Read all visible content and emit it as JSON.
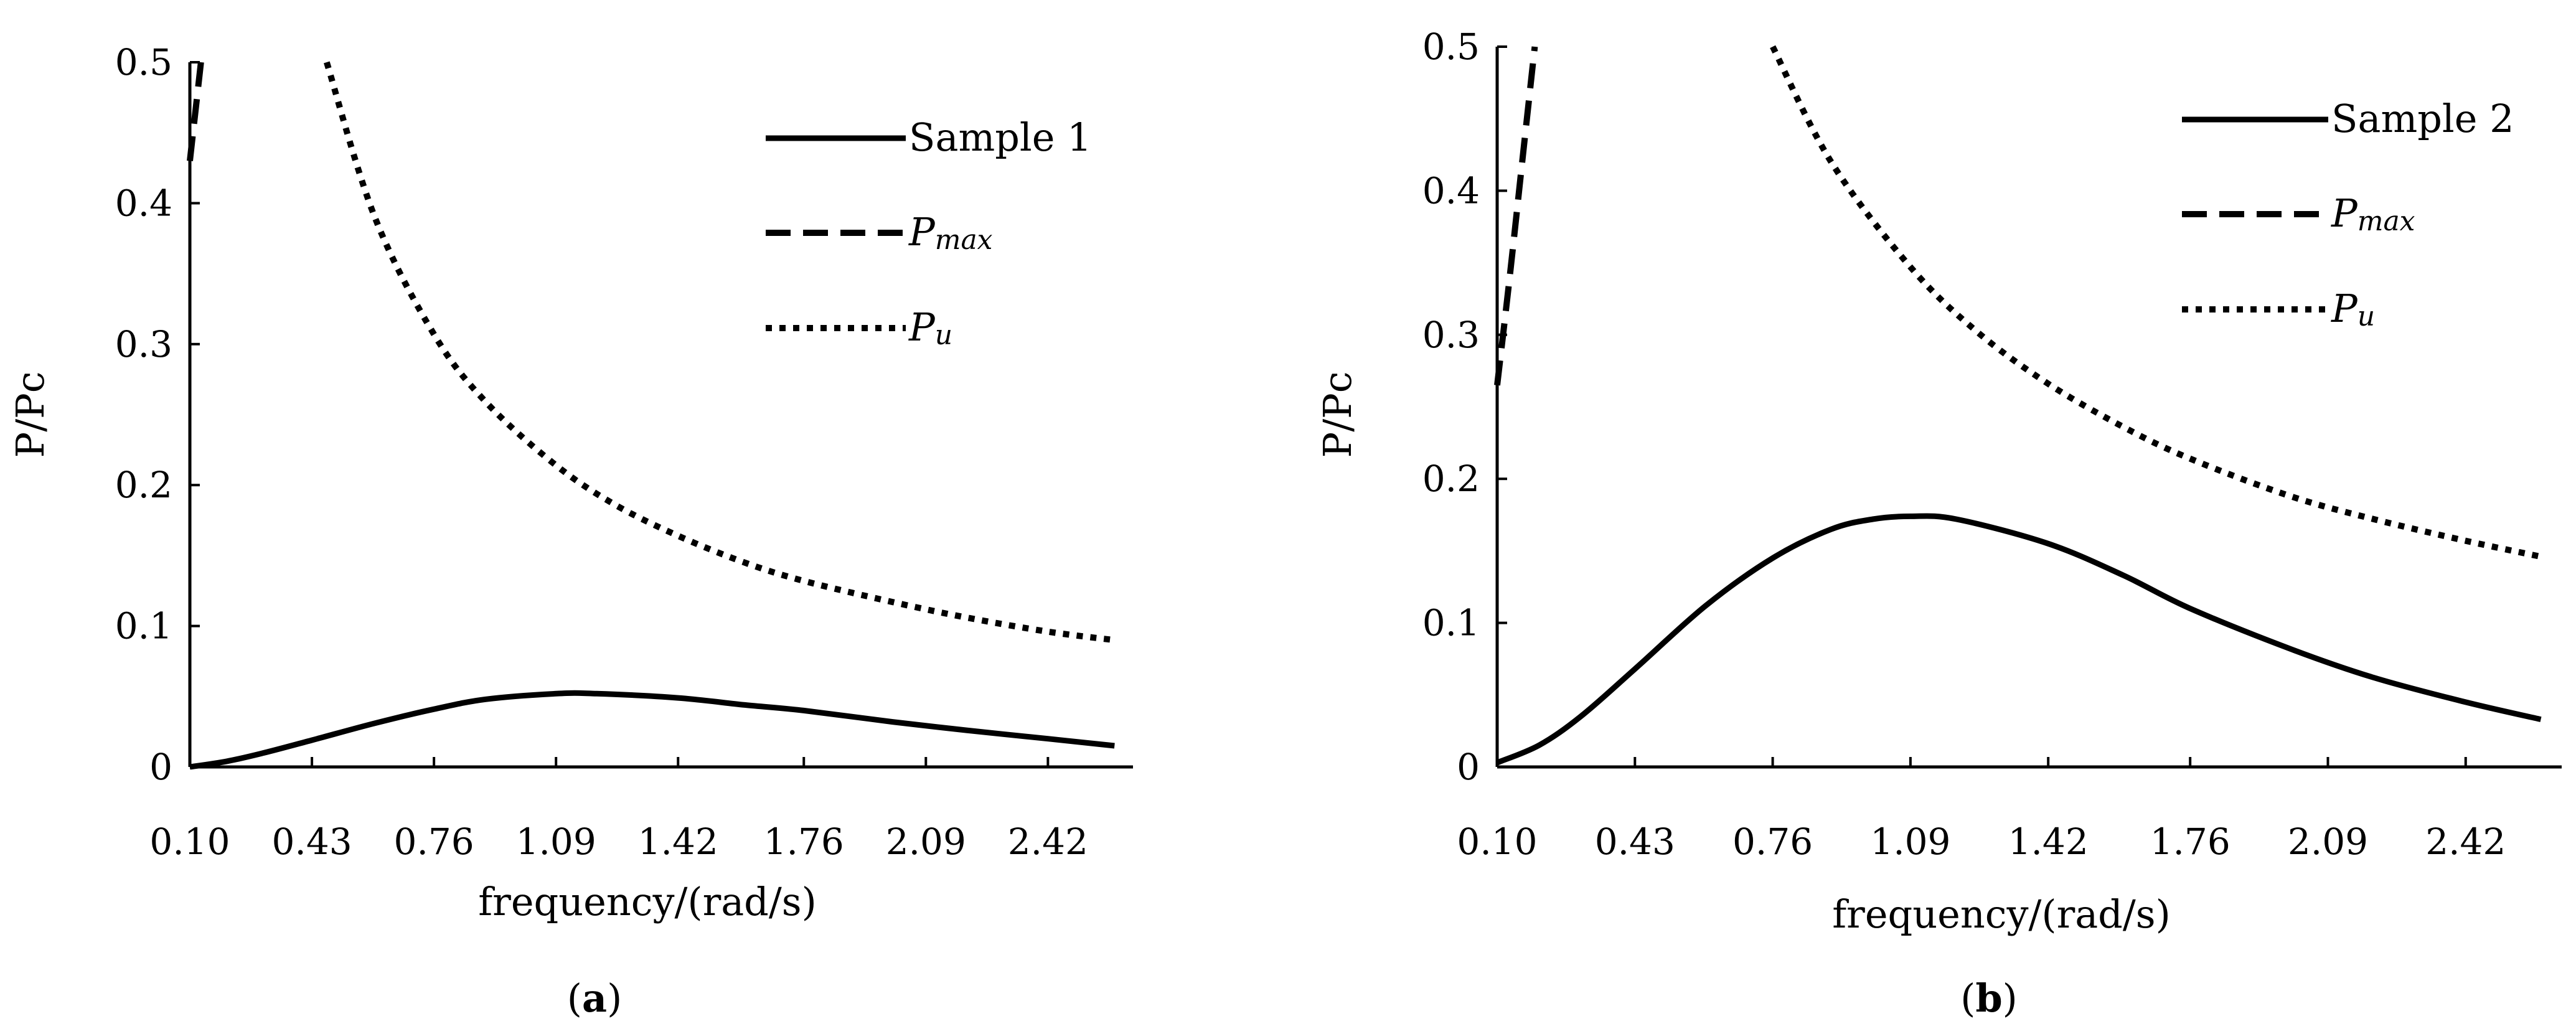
{
  "chart_data": [
    {
      "type": "line",
      "caption": {
        "open": "(",
        "letter": "a",
        "close": ")"
      },
      "xlabel": "frequency/(rad/s)",
      "ylabel": "P/Pc",
      "xlim": [
        0.1,
        2.65
      ],
      "ylim": [
        0,
        0.5
      ],
      "x_ticks": [
        "0.10",
        "0.43",
        "0.76",
        "1.09",
        "1.42",
        "1.76",
        "2.09",
        "2.42"
      ],
      "y_ticks": [
        "0",
        "0.1",
        "0.2",
        "0.3",
        "0.4",
        "0.5"
      ],
      "series": [
        {
          "name": "Sample 1",
          "style": "solid",
          "x": [
            0.1,
            0.2,
            0.3,
            0.43,
            0.6,
            0.76,
            0.9,
            1.09,
            1.2,
            1.42,
            1.6,
            1.76,
            2.0,
            2.2,
            2.42,
            2.6
          ],
          "y": [
            0.0,
            0.004,
            0.01,
            0.019,
            0.031,
            0.041,
            0.048,
            0.052,
            0.052,
            0.049,
            0.044,
            0.04,
            0.032,
            0.026,
            0.02,
            0.015
          ]
        },
        {
          "name": "P",
          "sub": "max",
          "style": "dashed",
          "x": [
            0.1,
            0.115,
            0.13
          ],
          "y": [
            0.43,
            0.465,
            0.5
          ]
        },
        {
          "name": "P",
          "sub": "u",
          "style": "dotted",
          "x": [
            0.47,
            0.6,
            0.76,
            0.9,
            1.09,
            1.25,
            1.42,
            1.6,
            1.76,
            2.0,
            2.2,
            2.42,
            2.6
          ],
          "y": [
            0.5,
            0.39,
            0.307,
            0.259,
            0.214,
            0.186,
            0.164,
            0.145,
            0.132,
            0.117,
            0.106,
            0.096,
            0.09
          ]
        }
      ]
    },
    {
      "type": "line",
      "caption": {
        "open": "(",
        "letter": "b",
        "close": ")"
      },
      "xlabel": "frequency/(rad/s)",
      "ylabel": "P/Pc",
      "xlim": [
        0.1,
        2.65
      ],
      "ylim": [
        0,
        0.5
      ],
      "x_ticks": [
        "0.10",
        "0.43",
        "0.76",
        "1.09",
        "1.42",
        "1.76",
        "2.09",
        "2.42"
      ],
      "y_ticks": [
        "0",
        "0.1",
        "0.2",
        "0.3",
        "0.4",
        "0.5"
      ],
      "series": [
        {
          "name": "Sample 2",
          "style": "solid",
          "x": [
            0.1,
            0.2,
            0.3,
            0.43,
            0.6,
            0.76,
            0.9,
            1.0,
            1.09,
            1.2,
            1.42,
            1.6,
            1.76,
            2.0,
            2.2,
            2.42,
            2.6
          ],
          "y": [
            0.003,
            0.015,
            0.035,
            0.068,
            0.112,
            0.145,
            0.165,
            0.172,
            0.174,
            0.172,
            0.155,
            0.133,
            0.11,
            0.082,
            0.062,
            0.045,
            0.033
          ]
        },
        {
          "name": "P",
          "sub": "max",
          "style": "dashed",
          "x": [
            0.1,
            0.13,
            0.16,
            0.19
          ],
          "y": [
            0.265,
            0.34,
            0.42,
            0.5
          ]
        },
        {
          "name": "P",
          "sub": "u",
          "style": "dotted",
          "x": [
            0.76,
            0.9,
            1.09,
            1.25,
            1.42,
            1.6,
            1.76,
            2.0,
            2.2,
            2.42,
            2.6
          ],
          "y": [
            0.5,
            0.42,
            0.347,
            0.302,
            0.266,
            0.236,
            0.214,
            0.188,
            0.172,
            0.157,
            0.146
          ]
        }
      ]
    }
  ]
}
